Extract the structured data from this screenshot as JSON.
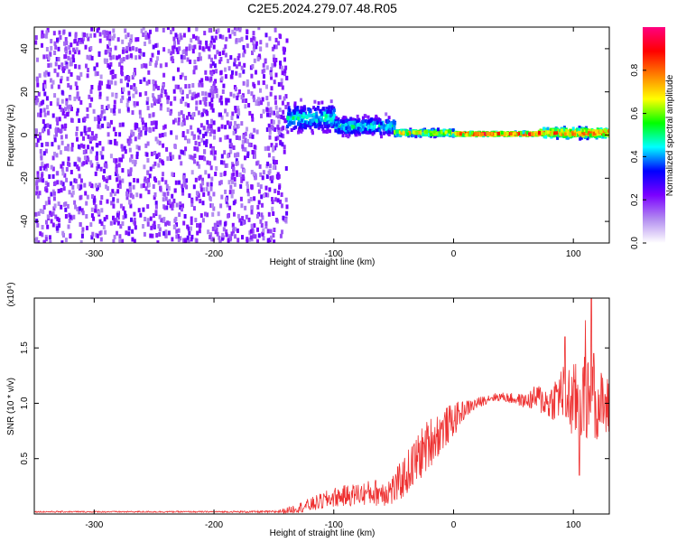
{
  "title": "C2E5.2024.279.07.48.R05",
  "chart_data": [
    {
      "type": "heatmap",
      "xlabel": "Height of straight line (km)",
      "ylabel": "Frequency (Hz)",
      "xlim": [
        -350,
        130
      ],
      "ylim": [
        -50,
        50
      ],
      "xticks": [
        -300,
        -200,
        -100,
        0,
        100
      ],
      "yticks": [
        -40,
        -20,
        0,
        20,
        40
      ],
      "grid": false,
      "colorbar": {
        "label": "Normalized spectral amplitude",
        "range": [
          0,
          1
        ],
        "ticks": [
          "0.0",
          "0.2",
          "0.4",
          "0.6",
          "0.8"
        ],
        "colors": [
          "#ffffff",
          "#b28cf0",
          "#7b00ff",
          "#0000ff",
          "#00ffff",
          "#00ff00",
          "#ffff00",
          "#ff8000",
          "#ff0000",
          "#ff0080"
        ]
      },
      "regions": [
        {
          "x": [
            -350,
            -140
          ],
          "freq_range": [
            -50,
            50
          ],
          "amplitude": [
            0.1,
            0.25
          ]
        },
        {
          "x": [
            -140,
            -100
          ],
          "freq_center": 8,
          "freq_halfwidth": 9,
          "amplitude": [
            0.3,
            0.55
          ]
        },
        {
          "x": [
            -100,
            -50
          ],
          "freq_center": 4,
          "freq_halfwidth": 6,
          "amplitude": [
            0.3,
            0.55
          ]
        },
        {
          "x": [
            -50,
            0
          ],
          "freq_center": 1,
          "freq_halfwidth": 2,
          "amplitude": [
            0.5,
            0.8
          ]
        },
        {
          "x": [
            0,
            70
          ],
          "freq_center": 0.5,
          "freq_halfwidth": 1,
          "amplitude": [
            0.8,
            1.0
          ]
        },
        {
          "x": [
            70,
            130
          ],
          "freq_center": 1,
          "freq_halfwidth": 3,
          "amplitude": [
            0.6,
            0.95
          ]
        }
      ]
    },
    {
      "type": "line",
      "xlabel": "Height of straight line (km)",
      "ylabel": "SNR (10 * v/v)",
      "y_multiplier": "(x10⁴)",
      "xlim": [
        -350,
        130
      ],
      "ylim": [
        0,
        1.95
      ],
      "xticks": [
        -300,
        -200,
        -100,
        0,
        100
      ],
      "yticks": [
        0.5,
        1.0,
        1.5
      ],
      "ytick_labels": [
        "0.5",
        "1.0",
        "1.5"
      ],
      "grid": false,
      "color": "#ee3030",
      "series": [
        {
          "x": [
            -350,
            -300,
            -250,
            -200,
            -150,
            -140,
            -120,
            -100,
            -80,
            -60,
            -50,
            -40,
            -30,
            -20,
            -10,
            0,
            10,
            20,
            30,
            40,
            50,
            60,
            70,
            80,
            90,
            100,
            110,
            120,
            130
          ],
          "values": [
            0.02,
            0.02,
            0.02,
            0.02,
            0.02,
            0.03,
            0.08,
            0.15,
            0.18,
            0.2,
            0.22,
            0.35,
            0.5,
            0.65,
            0.75,
            0.85,
            0.95,
            1.0,
            1.05,
            1.06,
            1.04,
            1.02,
            1.05,
            1.0,
            1.1,
            1.0,
            1.05,
            1.0,
            0.95
          ],
          "noise_amplitude": [
            0.005,
            0.005,
            0.005,
            0.005,
            0.008,
            0.02,
            0.05,
            0.07,
            0.08,
            0.1,
            0.12,
            0.15,
            0.18,
            0.18,
            0.15,
            0.12,
            0.06,
            0.04,
            0.03,
            0.03,
            0.04,
            0.05,
            0.1,
            0.12,
            0.2,
            0.28,
            0.3,
            0.25,
            0.22
          ],
          "peaks": [
            [
              93,
              1.6
            ],
            [
              110,
              1.75
            ],
            [
              115,
              1.95
            ],
            [
              117,
              1.45
            ],
            [
              105,
              0.35
            ]
          ]
        }
      ]
    }
  ]
}
